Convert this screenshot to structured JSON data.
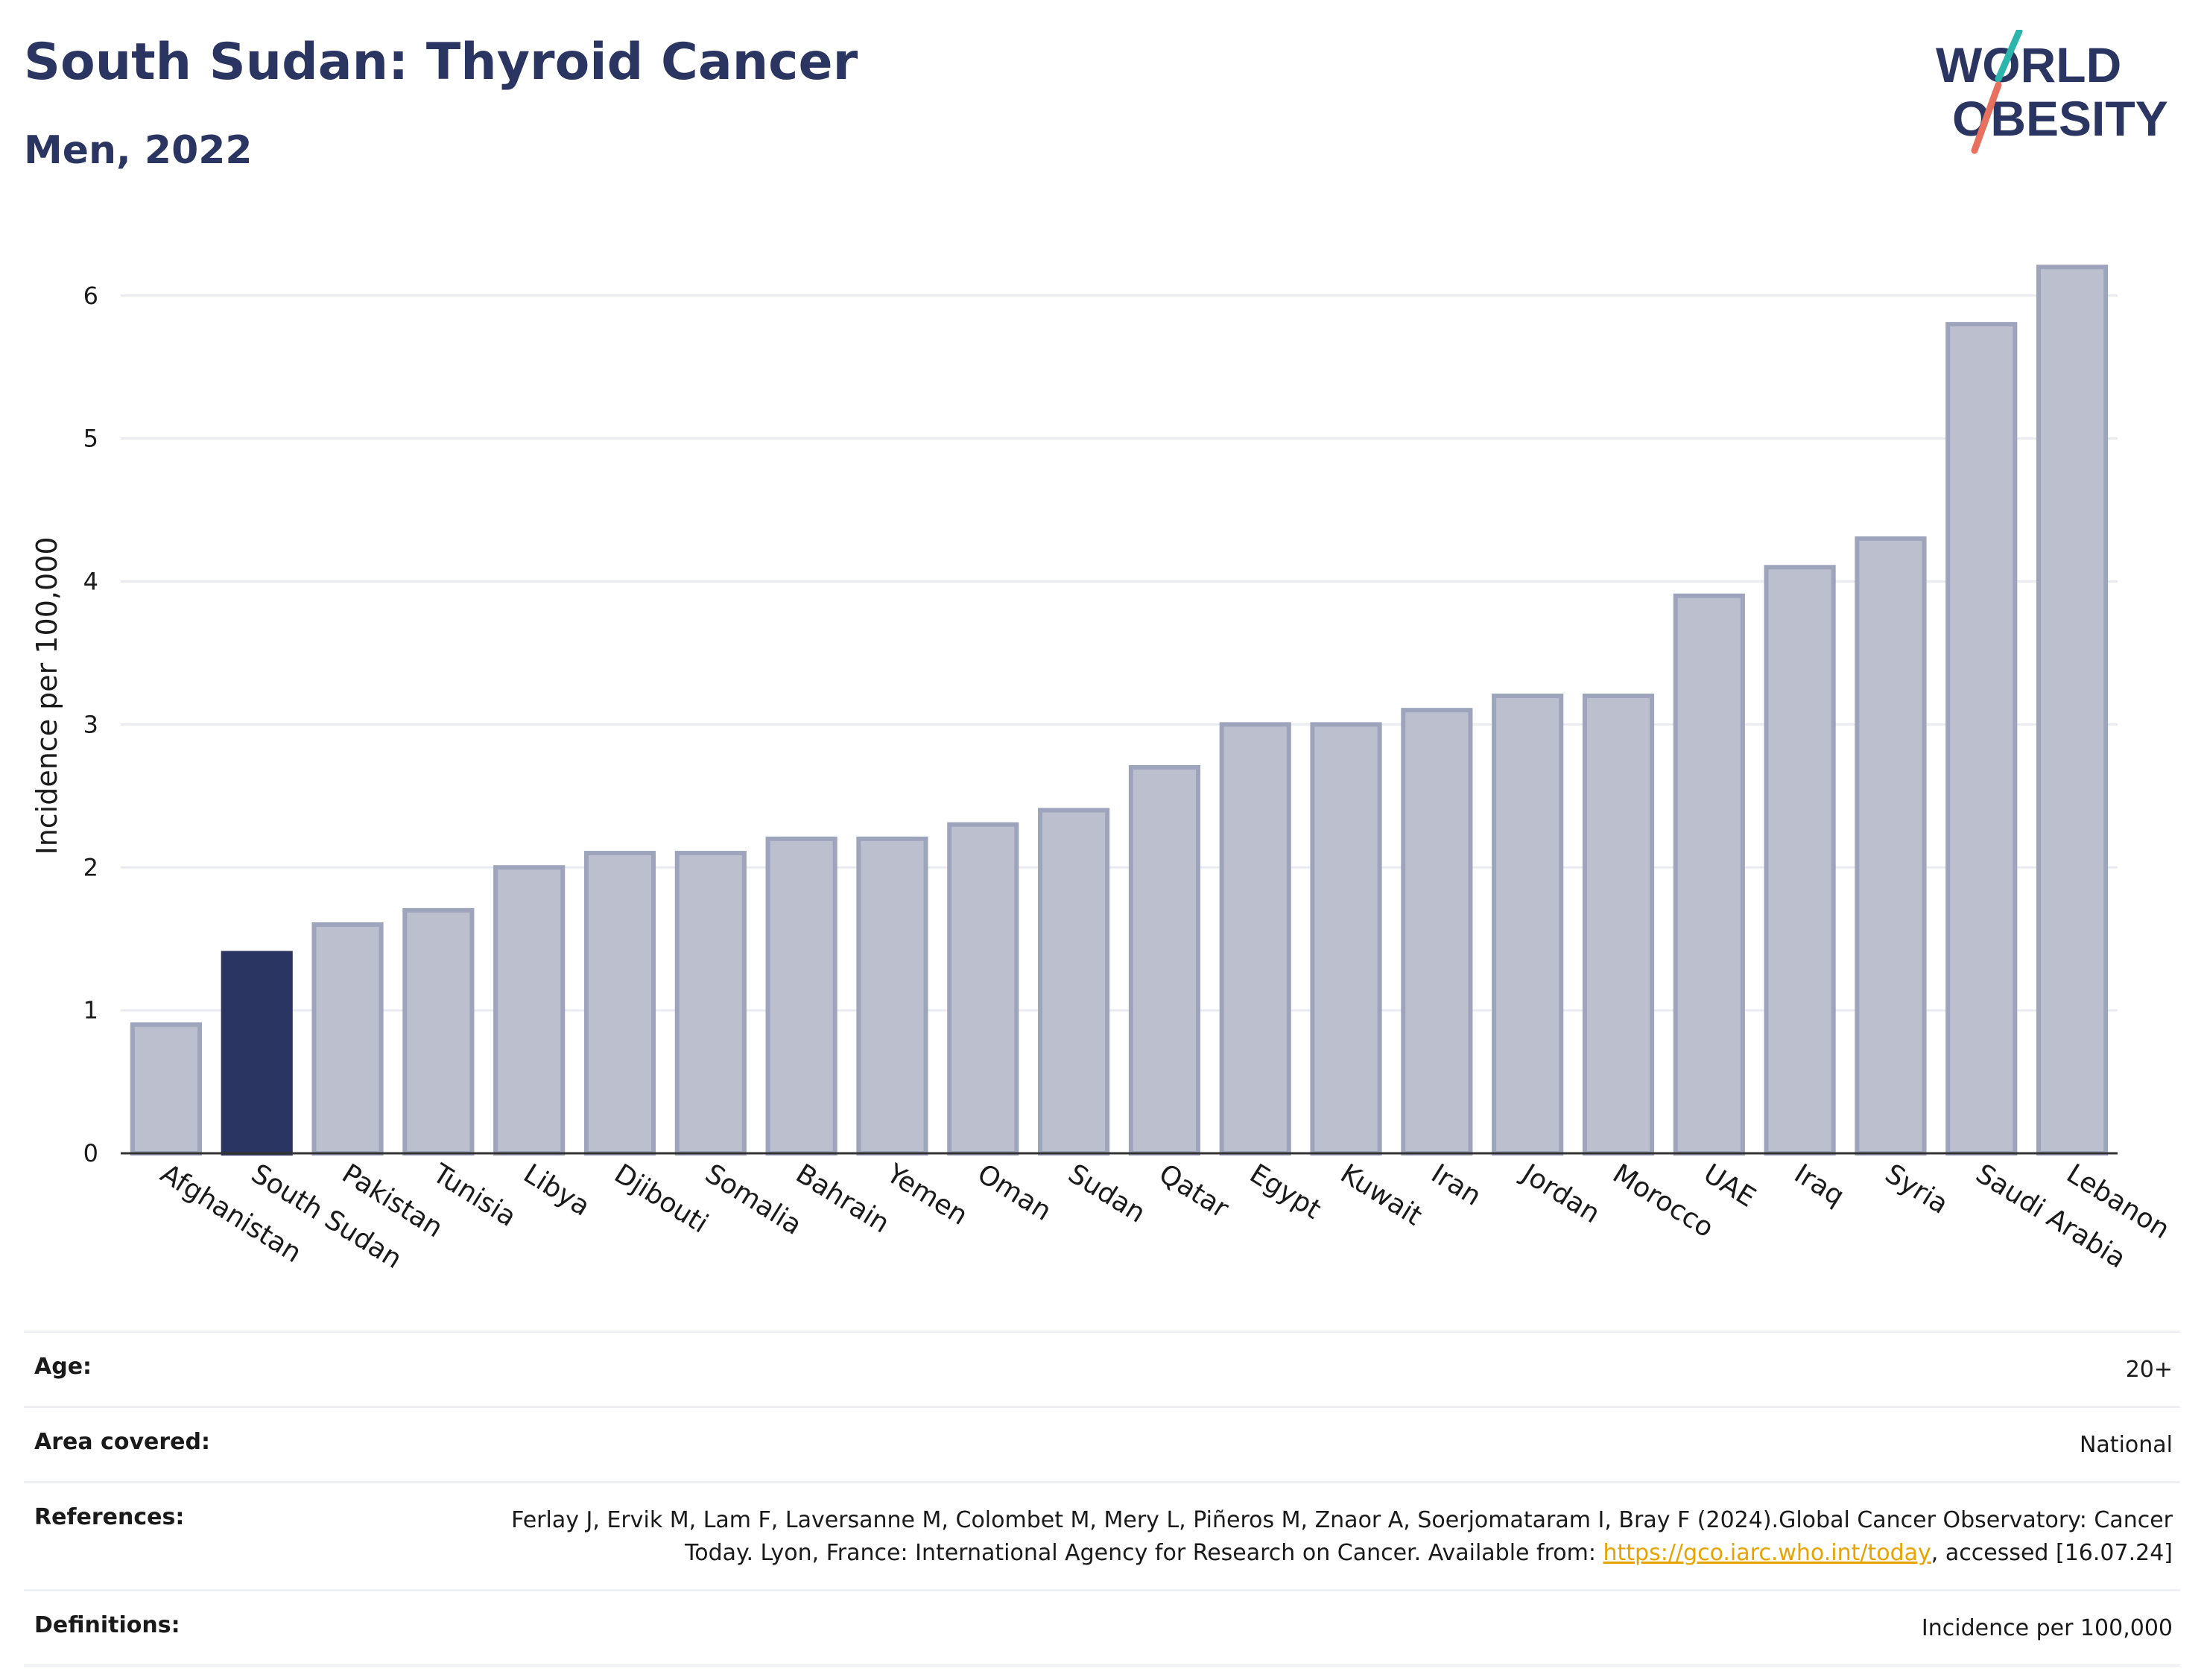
{
  "header": {
    "title": "South Sudan: Thyroid Cancer",
    "subtitle": "Men, 2022",
    "logo_line1": "WORLD",
    "logo_line2": "OBESITY"
  },
  "colors": {
    "highlight": "#2b3562",
    "bar": "#bcc0ce",
    "bar_edge": "#9ea4bb",
    "title": "#2b3562",
    "logo_teal": "#2bb5ac",
    "logo_coral": "#e8705e",
    "link": "#e8a300"
  },
  "chart_data": {
    "type": "bar",
    "title": "",
    "xlabel": "",
    "ylabel": "Incidence per 100,000",
    "ylim": [
      0,
      6.4
    ],
    "yticks": [
      0,
      1,
      2,
      3,
      4,
      5,
      6
    ],
    "grid": true,
    "highlight": "South Sudan",
    "categories": [
      "Afghanistan",
      "South Sudan",
      "Pakistan",
      "Tunisia",
      "Libya",
      "Djibouti",
      "Somalia",
      "Bahrain",
      "Yemen",
      "Oman",
      "Sudan",
      "Qatar",
      "Egypt",
      "Kuwait",
      "Iran",
      "Jordan",
      "Morocco",
      "UAE",
      "Iraq",
      "Syria",
      "Saudi Arabia",
      "Lebanon"
    ],
    "values": [
      0.9,
      1.4,
      1.6,
      1.7,
      2.0,
      2.1,
      2.1,
      2.2,
      2.2,
      2.3,
      2.4,
      2.7,
      3.0,
      3.0,
      3.1,
      3.2,
      3.2,
      3.9,
      4.1,
      4.3,
      5.8,
      6.2
    ]
  },
  "info": {
    "age_label": "Age:",
    "age_value": "20+",
    "area_label": "Area covered:",
    "area_value": "National",
    "references_label": "References:",
    "references_text_1": "Ferlay J, Ervik M, Lam F, Laversanne M, Colombet M, Mery L, Piñeros M, Znaor A, Soerjomataram I, Bray F (2024).Global Cancer Observatory: Cancer Today. Lyon, France: International Agency for Research on Cancer. Available from: ",
    "references_link": "https://gco.iarc.who.int/today",
    "references_text_2": ", accessed [16.07.24]",
    "definitions_label": "Definitions:",
    "definitions_value": "Incidence per 100,000"
  }
}
